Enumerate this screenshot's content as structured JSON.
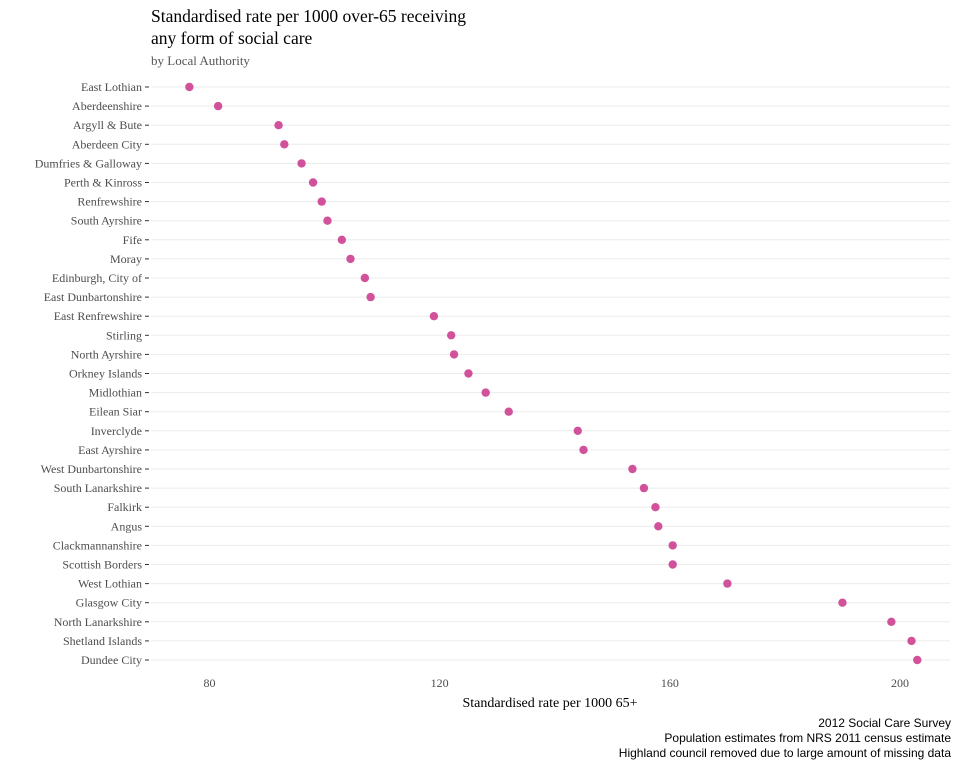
{
  "chart_data": {
    "type": "scatter",
    "title_line1": "Standardised rate per 1000 over-65 receiving",
    "title_line2": "any form of social care",
    "subtitle": "by Local Authority",
    "xlabel": "Standardised rate per 1000 65+",
    "ylabel": "",
    "xlim": [
      70,
      205
    ],
    "xticks": [
      80,
      120,
      160,
      200
    ],
    "grid": true,
    "legend": "none",
    "point_color": "#d1529b",
    "categories": [
      "East Lothian",
      "Aberdeenshire",
      "Argyll & Bute",
      "Aberdeen City",
      "Dumfries & Galloway",
      "Perth & Kinross",
      "Renfrewshire",
      "South Ayrshire",
      "Fife",
      "Moray",
      "Edinburgh, City of",
      "East Dunbartonshire",
      "East Renfrewshire",
      "Stirling",
      "North Ayrshire",
      "Orkney Islands",
      "Midlothian",
      "Eilean Siar",
      "Inverclyde",
      "East Ayrshire",
      "West Dunbartonshire",
      "South Lanarkshire",
      "Falkirk",
      "Angus",
      "Clackmannanshire",
      "Scottish Borders",
      "West Lothian",
      "Glasgow City",
      "North Lanarkshire",
      "Shetland Islands",
      "Dundee City"
    ],
    "values": [
      76.5,
      81.5,
      92,
      93,
      96,
      98,
      99.5,
      100.5,
      103,
      104.5,
      107,
      108,
      119,
      122,
      122.5,
      125,
      128,
      132,
      144,
      145,
      153.5,
      155.5,
      157.5,
      158,
      160.5,
      160.5,
      170,
      190,
      198.5,
      202,
      203
    ]
  },
  "caption": {
    "line1": "2012 Social Care Survey",
    "line2": "Population estimates from NRS 2011 census estimate",
    "line3": "Highland council removed due to large amount of missing data"
  }
}
